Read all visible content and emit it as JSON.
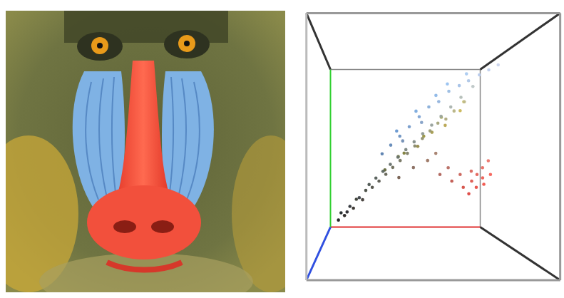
{
  "chart_data": {
    "type": "scatter",
    "x": [
      15,
      25,
      30,
      20,
      40,
      35,
      45,
      55,
      50,
      60,
      70,
      65,
      80,
      75,
      90,
      85,
      100,
      95,
      110,
      105,
      120,
      115,
      130,
      125,
      140,
      135,
      150,
      145,
      160,
      155,
      170,
      165,
      180,
      175,
      190,
      185,
      120,
      140,
      160,
      180,
      200,
      150,
      110,
      90,
      170,
      200,
      90,
      100,
      110,
      120,
      130,
      140,
      150,
      160,
      170,
      180,
      190,
      200,
      115,
      135,
      95,
      80,
      145,
      165,
      125,
      105,
      220,
      230,
      235,
      225,
      240,
      215,
      230,
      210,
      245,
      220,
      200,
      235,
      190,
      180,
      170,
      150,
      130,
      110,
      160
    ],
    "y": [
      15,
      22,
      30,
      28,
      35,
      40,
      50,
      50,
      55,
      65,
      70,
      75,
      80,
      85,
      90,
      95,
      100,
      105,
      110,
      115,
      120,
      125,
      130,
      135,
      140,
      145,
      150,
      155,
      160,
      165,
      165,
      175,
      175,
      185,
      185,
      195,
      120,
      130,
      150,
      160,
      180,
      145,
      115,
      95,
      170,
      190,
      130,
      140,
      150,
      160,
      170,
      175,
      185,
      190,
      195,
      200,
      205,
      210,
      165,
      180,
      145,
      120,
      190,
      200,
      155,
      135,
      80,
      70,
      85,
      90,
      75,
      95,
      100,
      70,
      90,
      60,
      90,
      110,
      80,
      100,
      90,
      110,
      100,
      85,
      120
    ],
    "z": [
      20,
      20,
      35,
      30,
      30,
      45,
      40,
      45,
      60,
      55,
      60,
      70,
      70,
      80,
      75,
      90,
      80,
      100,
      90,
      110,
      95,
      120,
      100,
      130,
      105,
      140,
      110,
      150,
      115,
      160,
      120,
      170,
      125,
      180,
      140,
      195,
      50,
      60,
      70,
      70,
      80,
      55,
      60,
      50,
      90,
      100,
      180,
      190,
      200,
      210,
      215,
      220,
      225,
      230,
      230,
      235,
      235,
      235,
      220,
      230,
      205,
      170,
      240,
      240,
      195,
      175,
      70,
      60,
      75,
      80,
      65,
      85,
      90,
      60,
      80,
      55,
      80,
      100,
      70,
      90,
      80,
      90,
      85,
      70,
      100
    ],
    "xlim": [
      0,
      255
    ],
    "ylim": [
      0,
      255
    ],
    "zlim": [
      0,
      255
    ],
    "color": "rgb",
    "tick_labels": false
  }
}
